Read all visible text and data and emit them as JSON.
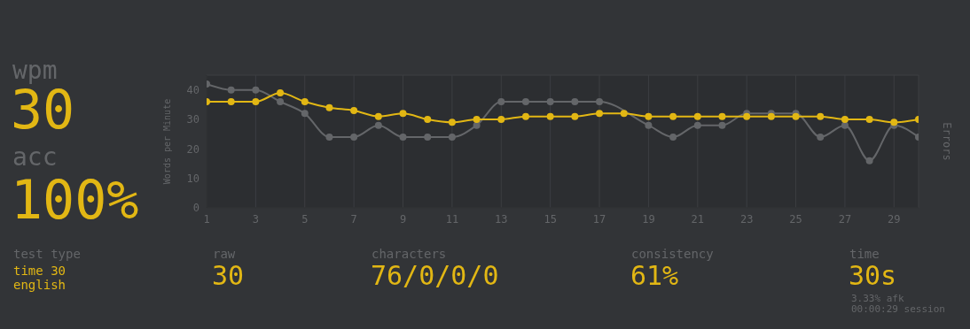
{
  "chart_data": [
    {
      "type": "other",
      "annotations": [
        "wpm",
        "30",
        "acc",
        "100%"
      ]
    },
    {
      "type": "line",
      "ylabel": "Words per Minute",
      "y2label": "Errors",
      "x": [
        1,
        2,
        3,
        4,
        5,
        6,
        7,
        8,
        9,
        10,
        11,
        12,
        13,
        14,
        15,
        16,
        17,
        18,
        19,
        20,
        21,
        22,
        23,
        24,
        25,
        26,
        27,
        28,
        29,
        30
      ],
      "series": [
        {
          "color": "#646669",
          "values": [
            42,
            40,
            40,
            36,
            32,
            24,
            24,
            28,
            24,
            24,
            24,
            28,
            36,
            36,
            36,
            36,
            36,
            null,
            28,
            24,
            28,
            28,
            32,
            32,
            32,
            24,
            28,
            16,
            28,
            24
          ]
        },
        {
          "color": "#e2b714",
          "values": [
            36,
            36,
            36,
            39,
            36,
            34,
            33,
            31,
            32,
            30,
            29,
            30,
            30,
            31,
            31,
            31,
            32,
            32,
            31,
            31,
            31,
            31,
            31,
            31,
            31,
            31,
            30,
            30,
            29,
            30
          ]
        }
      ],
      "xlim": [
        1,
        30
      ],
      "xticks": [
        1,
        3,
        5,
        7,
        9,
        11,
        13,
        15,
        17,
        19,
        21,
        23,
        25,
        27,
        29
      ],
      "ylim": [
        0,
        45
      ],
      "yticks": [
        0,
        10,
        20,
        30,
        40
      ],
      "grid": true,
      "legend": false,
      "marker": "circle",
      "line_style": "solid"
    },
    {
      "type": "other",
      "annotations": [
        "test type",
        "time 30",
        "english",
        "raw",
        "30",
        "characters",
        "76/0/0/0",
        "consistency",
        "61%",
        "time",
        "30s",
        "3.33% afk",
        "00:00:29 session"
      ]
    }
  ]
}
